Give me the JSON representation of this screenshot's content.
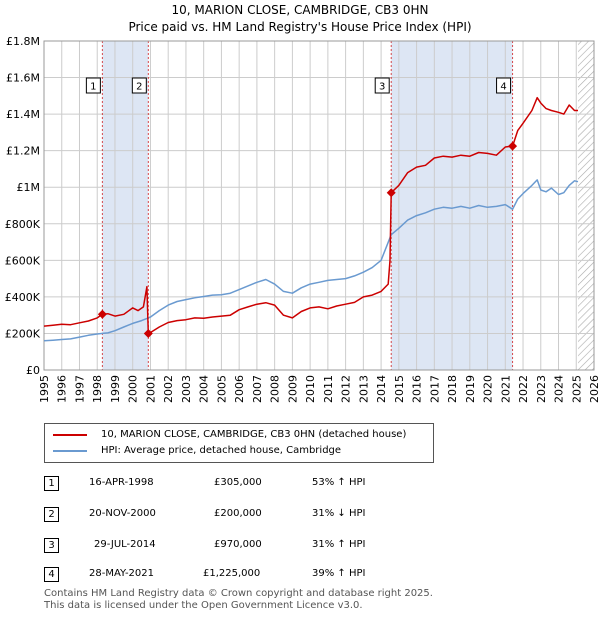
{
  "title_line1": "10, MARION CLOSE, CAMBRIDGE, CB3 0HN",
  "title_line2": "Price paid vs. HM Land Registry's House Price Index (HPI)",
  "colors": {
    "property": "#cc0000",
    "hpi": "#6a9ad0",
    "band": "#dde6f4",
    "grid": "#cccccc",
    "hatch": "#aaaaaa"
  },
  "legend": {
    "property_label": "10, MARION CLOSE, CAMBRIDGE, CB3 0HN (detached house)",
    "hpi_label": "HPI: Average price, detached house, Cambridge"
  },
  "transactions": [
    {
      "num": "1",
      "date": "16-APR-1998",
      "price": "£305,000",
      "hpi": "53% ↑ HPI"
    },
    {
      "num": "2",
      "date": "20-NOV-2000",
      "price": "£200,000",
      "hpi": "31% ↓ HPI"
    },
    {
      "num": "3",
      "date": "29-JUL-2014",
      "price": "£970,000",
      "hpi": "31% ↑ HPI"
    },
    {
      "num": "4",
      "date": "28-MAY-2021",
      "price": "£1,225,000",
      "hpi": "39% ↑ HPI"
    }
  ],
  "footer": {
    "line1": "Contains HM Land Registry data © Crown copyright and database right 2025.",
    "line2": "This data is licensed under the Open Government Licence v3.0."
  },
  "chart_data": {
    "type": "line",
    "title": "Price paid vs. HM Land Registry's House Price Index (HPI)",
    "xlabel": "",
    "ylabel": "",
    "xlim": [
      1995,
      2026
    ],
    "ylim": [
      0,
      1800000
    ],
    "x_ticks": [
      1995,
      1996,
      1997,
      1998,
      1999,
      2000,
      2001,
      2002,
      2003,
      2004,
      2005,
      2006,
      2007,
      2008,
      2009,
      2010,
      2011,
      2012,
      2013,
      2014,
      2015,
      2016,
      2017,
      2018,
      2019,
      2020,
      2021,
      2022,
      2023,
      2024,
      2025,
      2026
    ],
    "y_ticks": [
      {
        "value": 0,
        "label": "£0"
      },
      {
        "value": 200000,
        "label": "£200K"
      },
      {
        "value": 400000,
        "label": "£400K"
      },
      {
        "value": 600000,
        "label": "£600K"
      },
      {
        "value": 800000,
        "label": "£800K"
      },
      {
        "value": 1000000,
        "label": "£1M"
      },
      {
        "value": 1200000,
        "label": "£1.2M"
      },
      {
        "value": 1400000,
        "label": "£1.4M"
      },
      {
        "value": 1600000,
        "label": "£1.6M"
      },
      {
        "value": 1800000,
        "label": "£1.8M"
      }
    ],
    "grid": true,
    "shaded_periods": [
      [
        1998.29,
        2000.88
      ],
      [
        2014.57,
        2021.41
      ]
    ],
    "forecast_from": 2025.1,
    "sales": [
      {
        "label": "1",
        "x": 1998.29,
        "y": 305000
      },
      {
        "label": "2",
        "x": 2000.88,
        "y": 200000
      },
      {
        "label": "3",
        "x": 2014.57,
        "y": 970000
      },
      {
        "label": "4",
        "x": 2021.41,
        "y": 1225000
      }
    ],
    "series": [
      {
        "name": "10, MARION CLOSE, CAMBRIDGE, CB3 0HN (detached house)",
        "x": [
          1995,
          1995.5,
          1996,
          1996.5,
          1997,
          1997.5,
          1998,
          1998.29,
          1998.6,
          1999,
          1999.5,
          2000,
          2000.3,
          2000.6,
          2000.8,
          2000.88,
          2001,
          2001.5,
          2002,
          2002.5,
          2003,
          2003.5,
          2004,
          2004.5,
          2005,
          2005.5,
          2006,
          2006.5,
          2007,
          2007.5,
          2008,
          2008.5,
          2009,
          2009.5,
          2010,
          2010.5,
          2011,
          2011.5,
          2012,
          2012.5,
          2013,
          2013.5,
          2014,
          2014.4,
          2014.5,
          2014.57,
          2015,
          2015.5,
          2016,
          2016.5,
          2017,
          2017.5,
          2018,
          2018.5,
          2019,
          2019.5,
          2020,
          2020.5,
          2021,
          2021.41,
          2021.7,
          2022,
          2022.5,
          2022.8,
          2023,
          2023.3,
          2023.6,
          2024,
          2024.3,
          2024.6,
          2024.9,
          2025.1
        ],
        "values": [
          240000,
          245000,
          250000,
          248000,
          258000,
          268000,
          285000,
          305000,
          308000,
          295000,
          305000,
          340000,
          325000,
          345000,
          455000,
          200000,
          205000,
          235000,
          260000,
          270000,
          275000,
          285000,
          283000,
          290000,
          295000,
          300000,
          330000,
          345000,
          360000,
          368000,
          355000,
          300000,
          285000,
          320000,
          340000,
          345000,
          335000,
          350000,
          360000,
          370000,
          400000,
          410000,
          430000,
          470000,
          600000,
          970000,
          1010000,
          1080000,
          1110000,
          1120000,
          1160000,
          1170000,
          1165000,
          1175000,
          1170000,
          1190000,
          1185000,
          1175000,
          1220000,
          1225000,
          1310000,
          1350000,
          1420000,
          1490000,
          1460000,
          1430000,
          1420000,
          1410000,
          1400000,
          1450000,
          1420000,
          1420000
        ]
      },
      {
        "name": "HPI: Average price, detached house, Cambridge",
        "x": [
          1995,
          1995.5,
          1996,
          1996.5,
          1997,
          1997.5,
          1998,
          1998.29,
          1998.6,
          1999,
          1999.5,
          2000,
          2000.5,
          2000.88,
          2001,
          2001.5,
          2002,
          2002.5,
          2003,
          2003.5,
          2004,
          2004.5,
          2005,
          2005.5,
          2006,
          2006.5,
          2007,
          2007.5,
          2008,
          2008.5,
          2009,
          2009.5,
          2010,
          2010.5,
          2011,
          2011.5,
          2012,
          2012.5,
          2013,
          2013.5,
          2014,
          2014.57,
          2015,
          2015.5,
          2016,
          2016.5,
          2017,
          2017.5,
          2018,
          2018.5,
          2019,
          2019.5,
          2020,
          2020.5,
          2021,
          2021.41,
          2021.7,
          2022,
          2022.5,
          2022.8,
          2023,
          2023.3,
          2023.6,
          2024,
          2024.3,
          2024.6,
          2024.9,
          2025.1
        ],
        "values": [
          160000,
          163000,
          167000,
          170000,
          180000,
          190000,
          197000,
          200000,
          203000,
          215000,
          235000,
          255000,
          270000,
          285000,
          290000,
          325000,
          355000,
          375000,
          385000,
          395000,
          402000,
          410000,
          412000,
          420000,
          440000,
          460000,
          480000,
          495000,
          470000,
          430000,
          420000,
          450000,
          470000,
          480000,
          490000,
          495000,
          500000,
          515000,
          535000,
          560000,
          600000,
          740000,
          775000,
          820000,
          845000,
          860000,
          880000,
          890000,
          885000,
          895000,
          885000,
          900000,
          890000,
          895000,
          905000,
          880000,
          935000,
          965000,
          1010000,
          1040000,
          985000,
          975000,
          995000,
          960000,
          970000,
          1010000,
          1035000,
          1030000
        ]
      }
    ]
  }
}
